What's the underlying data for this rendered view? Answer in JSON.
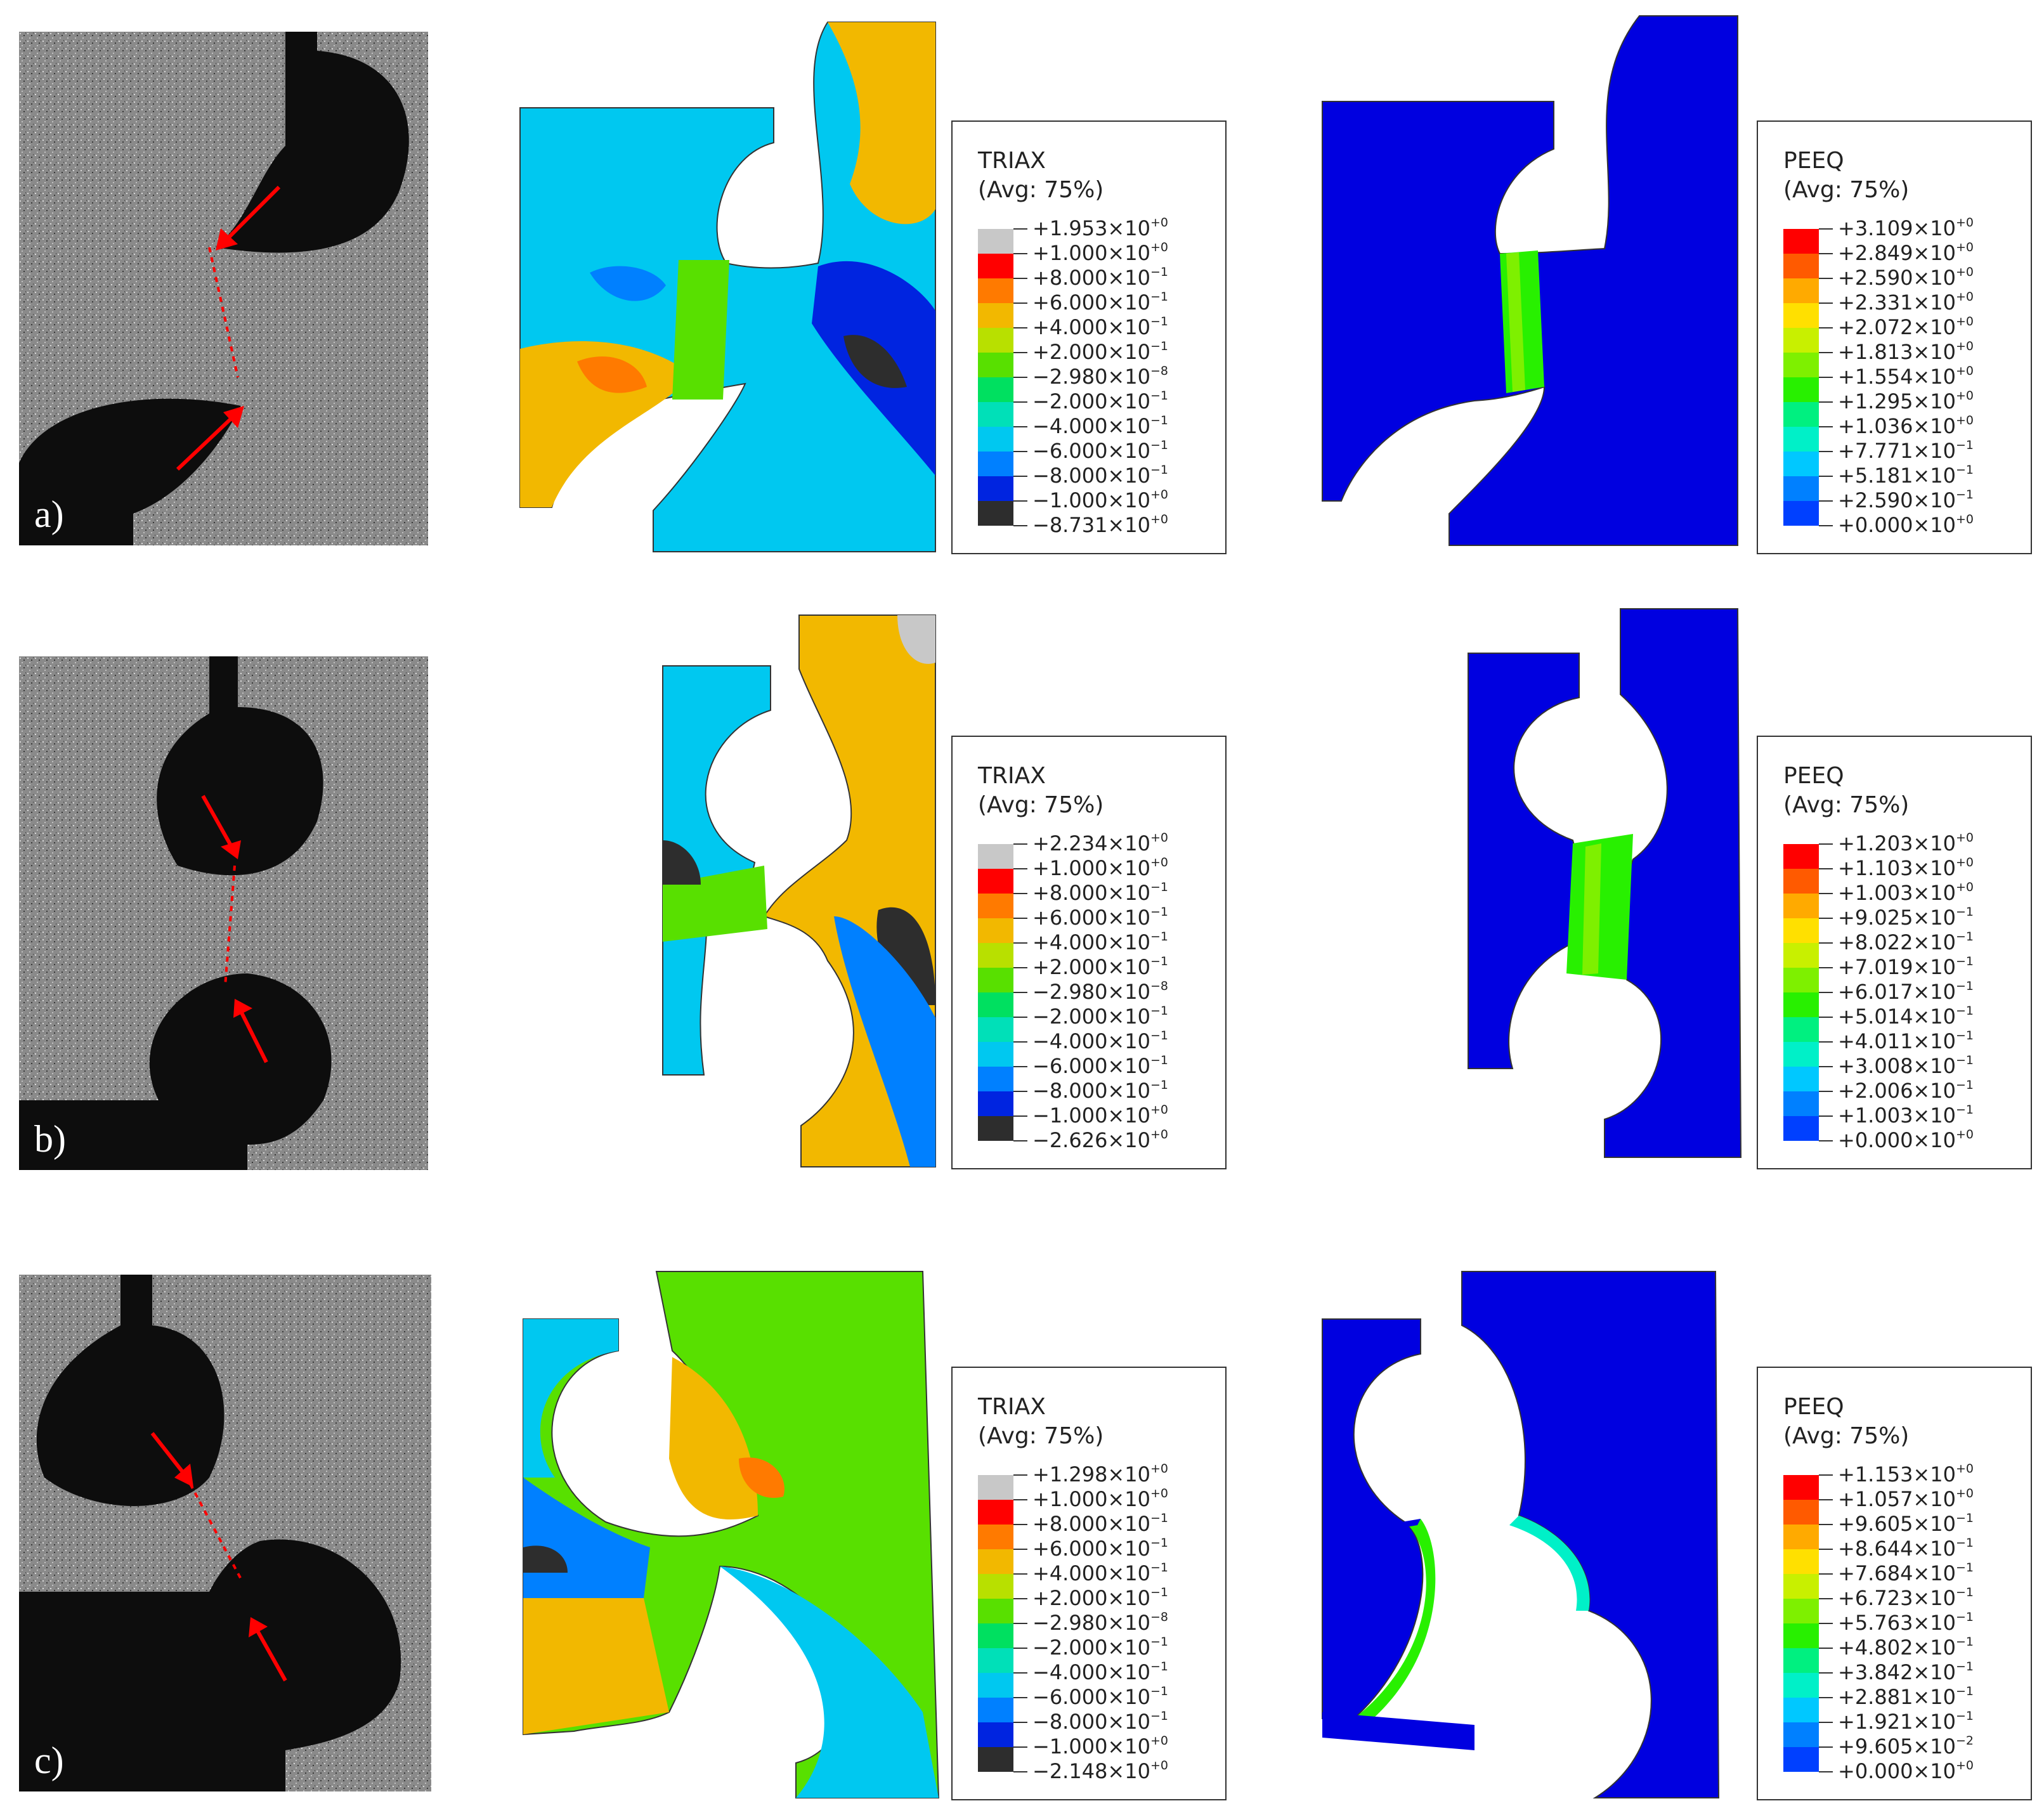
{
  "panels": [
    {
      "label": "a)",
      "triax": {
        "title": "TRIAX",
        "avg": "(Avg: 75%)",
        "values": [
          "+1.953",
          "+1.000",
          "+8.000",
          "+6.000",
          "+4.000",
          "+2.000",
          "−2.980",
          "−2.000",
          "−4.000",
          "−6.000",
          "−8.000",
          "−1.000",
          "−8.731"
        ],
        "exponents": [
          "+0",
          "+0",
          "−1",
          "−1",
          "−1",
          "−1",
          "−8",
          "−1",
          "−1",
          "−1",
          "−1",
          "+0",
          "+0"
        ]
      },
      "peeq": {
        "title": "PEEQ",
        "avg": "(Avg: 75%)",
        "values": [
          "+3.109",
          "+2.849",
          "+2.590",
          "+2.331",
          "+2.072",
          "+1.813",
          "+1.554",
          "+1.295",
          "+1.036",
          "+7.771",
          "+5.181",
          "+2.590",
          "+0.000"
        ],
        "exponents": [
          "+0",
          "+0",
          "+0",
          "+0",
          "+0",
          "+0",
          "+0",
          "+0",
          "+0",
          "−1",
          "−1",
          "−1",
          "+0"
        ]
      }
    },
    {
      "label": "b)",
      "triax": {
        "title": "TRIAX",
        "avg": "(Avg: 75%)",
        "values": [
          "+2.234",
          "+1.000",
          "+8.000",
          "+6.000",
          "+4.000",
          "+2.000",
          "−2.980",
          "−2.000",
          "−4.000",
          "−6.000",
          "−8.000",
          "−1.000",
          "−2.626"
        ],
        "exponents": [
          "+0",
          "+0",
          "−1",
          "−1",
          "−1",
          "−1",
          "−8",
          "−1",
          "−1",
          "−1",
          "−1",
          "+0",
          "+0"
        ]
      },
      "peeq": {
        "title": "PEEQ",
        "avg": "(Avg: 75%)",
        "values": [
          "+1.203",
          "+1.103",
          "+1.003",
          "+9.025",
          "+8.022",
          "+7.019",
          "+6.017",
          "+5.014",
          "+4.011",
          "+3.008",
          "+2.006",
          "+1.003",
          "+0.000"
        ],
        "exponents": [
          "+0",
          "+0",
          "+0",
          "−1",
          "−1",
          "−1",
          "−1",
          "−1",
          "−1",
          "−1",
          "−1",
          "−1",
          "+0"
        ]
      }
    },
    {
      "label": "c)",
      "triax": {
        "title": "TRIAX",
        "avg": "(Avg: 75%)",
        "values": [
          "+1.298",
          "+1.000",
          "+8.000",
          "+6.000",
          "+4.000",
          "+2.000",
          "−2.980",
          "−2.000",
          "−4.000",
          "−6.000",
          "−8.000",
          "−1.000",
          "−2.148"
        ],
        "exponents": [
          "+0",
          "+0",
          "−1",
          "−1",
          "−1",
          "−1",
          "−8",
          "−1",
          "−1",
          "−1",
          "−1",
          "+0",
          "+0"
        ]
      },
      "peeq": {
        "title": "PEEQ",
        "avg": "(Avg: 75%)",
        "values": [
          "+1.153",
          "+1.057",
          "+9.605",
          "+8.644",
          "+7.684",
          "+6.723",
          "+5.763",
          "+4.802",
          "+3.842",
          "+2.881",
          "+1.921",
          "+9.605",
          "+0.000"
        ],
        "exponents": [
          "+0",
          "+0",
          "−1",
          "−1",
          "−1",
          "−1",
          "−1",
          "−1",
          "−1",
          "−1",
          "−1",
          "−2",
          "+0"
        ]
      }
    }
  ],
  "colors": {
    "triax_scale": [
      "#c8c8c8",
      "#ff0000",
      "#ff7a00",
      "#f2b800",
      "#b8e000",
      "#58e000",
      "#00e060",
      "#00e0b8",
      "#00c8f0",
      "#0080ff",
      "#0024e0",
      "#2d2d2d"
    ],
    "peeq_scale": [
      "#ff0000",
      "#ff5a00",
      "#ffaa00",
      "#ffe000",
      "#c8f000",
      "#7ef000",
      "#28f000",
      "#00f080",
      "#00f0c8",
      "#00c8ff",
      "#0080ff",
      "#0040ff"
    ],
    "fem_base_blue": "#0000e0",
    "arrow": "#ff0000",
    "photo_hole": "#0d0d0d"
  }
}
